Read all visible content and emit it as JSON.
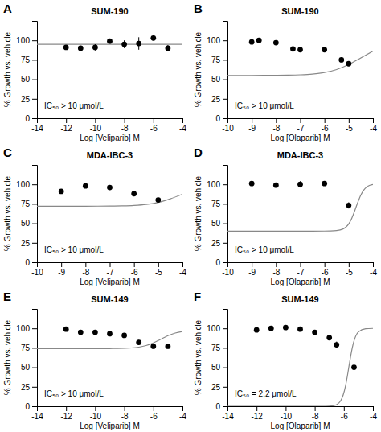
{
  "chart_data": [
    {
      "type": "scatter",
      "label": "A",
      "title": "SUM-190",
      "xlabel": "Log [Veliparib] M",
      "ylabel": "% Growth vs. vehicle",
      "annotation": "IC₅₀ > 10 μmol/L",
      "xlim": [
        -14,
        -4
      ],
      "xticks": [
        -14,
        -12,
        -10,
        -8,
        -6,
        -4
      ],
      "ylim": [
        0,
        125
      ],
      "yticks": [
        0,
        25,
        50,
        75,
        100
      ],
      "series": [
        {
          "type": "line",
          "color": "#888888",
          "line_style": "solid",
          "x": [
            -14,
            -13,
            -12,
            -11,
            -10,
            -9,
            -8,
            -7,
            -6,
            -5,
            -4
          ],
          "values": [
            95,
            95,
            95,
            95,
            95,
            95,
            95,
            95,
            95,
            95,
            95
          ]
        },
        {
          "type": "scatter",
          "color": "#000000",
          "marker": "circle",
          "x": [
            -12,
            -11,
            -10,
            -9,
            -8,
            -7,
            -6,
            -5
          ],
          "values": [
            91,
            90,
            91,
            99,
            95,
            96,
            103,
            90
          ],
          "errors": [
            3,
            2,
            4,
            3,
            5,
            8,
            3,
            4
          ]
        }
      ]
    },
    {
      "type": "scatter",
      "label": "B",
      "title": "SUM-190",
      "xlabel": "Log [Olaparib] M",
      "ylabel": "% Growth vs. vehicle",
      "annotation": "IC₅₀ > 10 μmol/L",
      "xlim": [
        -10,
        -4
      ],
      "xticks": [
        -10,
        -9,
        -8,
        -7,
        -6,
        -5,
        -4
      ],
      "ylim": [
        0,
        125
      ],
      "yticks": [
        0,
        25,
        50,
        75,
        100
      ],
      "series": [
        {
          "type": "line",
          "color": "#888888",
          "line_style": "solid",
          "x": [
            -10,
            -9.5,
            -9,
            -8.5,
            -8,
            -7.5,
            -7,
            -6.5,
            -6,
            -5.5,
            -5,
            -4.5,
            -4
          ],
          "values": [
            55.01,
            55.01,
            55.03,
            55.07,
            55.16,
            55.35,
            55.79,
            56.72,
            58.68,
            62.49,
            68.89,
            77.5,
            86.11
          ]
        },
        {
          "type": "scatter",
          "color": "#000000",
          "marker": "circle",
          "x": [
            -9,
            -8.7,
            -8,
            -7.3,
            -7,
            -6,
            -5.3,
            -5
          ],
          "values": [
            98,
            100,
            97,
            89,
            88,
            88,
            75,
            70
          ],
          "errors": [
            2,
            1,
            2,
            3,
            2,
            2,
            3,
            3
          ]
        }
      ]
    },
    {
      "type": "scatter",
      "label": "C",
      "title": "MDA-IBC-3",
      "xlabel": "Log [Veliparib] M",
      "ylabel": "% Growth vs. vehicle",
      "annotation": "IC₅₀ > 10 μmol/L",
      "xlim": [
        -10,
        -4
      ],
      "xticks": [
        -10,
        -9,
        -8,
        -7,
        -6,
        -5,
        -4
      ],
      "ylim": [
        0,
        125
      ],
      "yticks": [
        0,
        25,
        50,
        75,
        100
      ],
      "series": [
        {
          "type": "line",
          "color": "#888888",
          "line_style": "solid",
          "x": [
            -10,
            -9.5,
            -9,
            -8.5,
            -8,
            -7.5,
            -7,
            -6.5,
            -6,
            -5.5,
            -5,
            -4.5,
            -4
          ],
          "values": [
            72,
            72,
            72,
            72.01,
            72.02,
            72.06,
            72.15,
            72.37,
            72.91,
            74.17,
            76.85,
            81.5,
            87.37
          ]
        },
        {
          "type": "scatter",
          "color": "#000000",
          "marker": "circle",
          "x": [
            -9,
            -8,
            -7,
            -6,
            -5
          ],
          "values": [
            91,
            98,
            96,
            88,
            80
          ],
          "errors": [
            3,
            2,
            3,
            3,
            3
          ]
        }
      ]
    },
    {
      "type": "scatter",
      "label": "D",
      "title": "MDA-IBC-3",
      "xlabel": "Log [Olaparib] M",
      "ylabel": "% Growth vs. vehicle",
      "annotation": "IC₅₀ > 10 μmol/L",
      "xlim": [
        -10,
        -4
      ],
      "xticks": [
        -10,
        -9,
        -8,
        -7,
        -6,
        -5,
        -4
      ],
      "ylim": [
        0,
        125
      ],
      "yticks": [
        0,
        25,
        50,
        75,
        100
      ],
      "series": [
        {
          "type": "line",
          "color": "#888888",
          "line_style": "solid",
          "x": [
            -10,
            -9,
            -8,
            -7,
            -6.5,
            -6,
            -5.75,
            -5.5,
            -5.25,
            -5.125,
            -5,
            -4.875,
            -4.75,
            -4.625,
            -4.5,
            -4.375,
            -4.25,
            -4.125,
            -4
          ],
          "values": [
            40,
            40,
            40,
            40,
            40,
            40.03,
            40.14,
            40.6,
            42.47,
            44.86,
            49.21,
            56.32,
            66.14,
            76.98,
            86.35,
            92.86,
            96.74,
            98.85,
            99.93
          ]
        },
        {
          "type": "scatter",
          "color": "#000000",
          "marker": "circle",
          "x": [
            -9,
            -8,
            -7,
            -6,
            -5
          ],
          "values": [
            101,
            99,
            100,
            101,
            73
          ],
          "errors": [
            2,
            2,
            4,
            2,
            4
          ]
        }
      ]
    },
    {
      "type": "scatter",
      "label": "E",
      "title": "SUM-149",
      "xlabel": "Log [Veliparib] M",
      "ylabel": "% Growth vs. vehicle",
      "annotation": "IC₅₀ > 10 μmol/L",
      "xlim": [
        -14,
        -4
      ],
      "xticks": [
        -14,
        -12,
        -10,
        -8,
        -6,
        -4
      ],
      "ylim": [
        0,
        125
      ],
      "yticks": [
        0,
        25,
        50,
        75,
        100
      ],
      "series": [
        {
          "type": "line",
          "color": "#888888",
          "line_style": "solid",
          "x": [
            -14,
            -13,
            -12,
            -11,
            -10,
            -9,
            -8.5,
            -8,
            -7.5,
            -7,
            -6.5,
            -6,
            -5.5,
            -5,
            -4.5,
            -4
          ],
          "values": [
            74,
            74,
            74,
            74,
            74.02,
            74.08,
            74.19,
            74.42,
            74.92,
            75.96,
            77.99,
            81.41,
            86,
            90.59,
            94.01,
            96.04
          ]
        },
        {
          "type": "scatter",
          "color": "#000000",
          "marker": "circle",
          "x": [
            -12,
            -11,
            -10,
            -9,
            -8,
            -7,
            -6,
            -5
          ],
          "values": [
            99,
            95,
            95,
            93,
            91,
            82,
            77,
            77
          ],
          "errors": [
            2,
            3,
            3,
            3,
            3,
            3,
            3,
            3
          ]
        }
      ]
    },
    {
      "type": "scatter",
      "label": "F",
      "title": "SUM-149",
      "xlabel": "Log [Olaparib] M",
      "ylabel": "% Growth vs. vehicle",
      "annotation": "IC₅₀ = 2.2 μmol/L",
      "xlim": [
        -14,
        -4
      ],
      "xticks": [
        -14,
        -12,
        -10,
        -8,
        -6,
        -4
      ],
      "ylim": [
        0,
        125
      ],
      "yticks": [
        0,
        25,
        50,
        75,
        100
      ],
      "series": [
        {
          "type": "line",
          "color": "#888888",
          "line_style": "solid",
          "x": [
            -14,
            -12,
            -10,
            -9,
            -8,
            -7.5,
            -7,
            -6.75,
            -6.5,
            -6.25,
            -6.125,
            -6,
            -5.875,
            -5.75,
            -5.625,
            -5.5,
            -5.375,
            -5.25,
            -5,
            -4.5,
            -4
          ],
          "values": [
            0,
            0,
            0,
            0,
            0,
            0.02,
            0.21,
            0.66,
            2.05,
            6.2,
            10.51,
            17.28,
            27.09,
            39.78,
            54.02,
            67.63,
            78.79,
            86.85,
            95.43,
            99.52,
            99.95
          ]
        },
        {
          "type": "scatter",
          "color": "#000000",
          "marker": "circle",
          "x": [
            -12,
            -11,
            -10,
            -9,
            -8,
            -7,
            -6.5,
            -5.3
          ],
          "values": [
            98,
            100,
            101,
            99,
            95,
            88,
            79,
            50
          ],
          "errors": [
            2,
            2,
            2,
            2,
            3,
            3,
            4,
            3
          ]
        }
      ]
    }
  ]
}
